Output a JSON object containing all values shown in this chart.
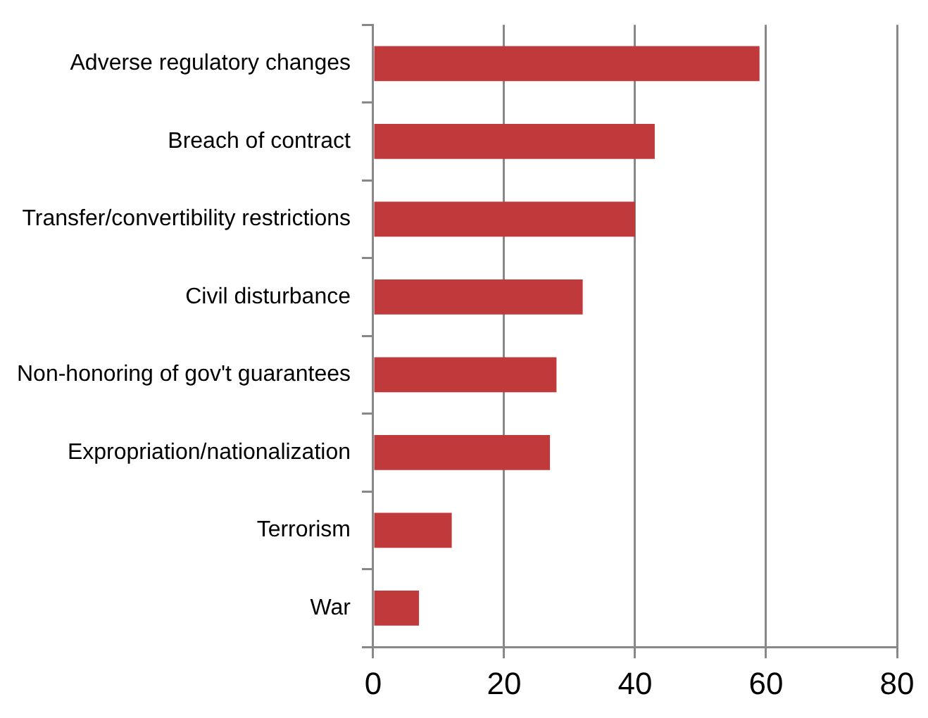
{
  "chart_data": {
    "type": "bar",
    "orientation": "horizontal",
    "categories": [
      "Adverse regulatory changes",
      "Breach of contract",
      "Transfer/convertibility restrictions",
      "Civil disturbance",
      "Non-honoring of gov't guarantees",
      "Expropriation/nationalization",
      "Terrorism",
      "War"
    ],
    "values": [
      59,
      43,
      40,
      32,
      28,
      27,
      12,
      7
    ],
    "color": "#c0393b",
    "xlim": [
      0,
      80
    ],
    "xticks": [
      0,
      20,
      40,
      60,
      80
    ],
    "grid": "x",
    "legend": false
  }
}
